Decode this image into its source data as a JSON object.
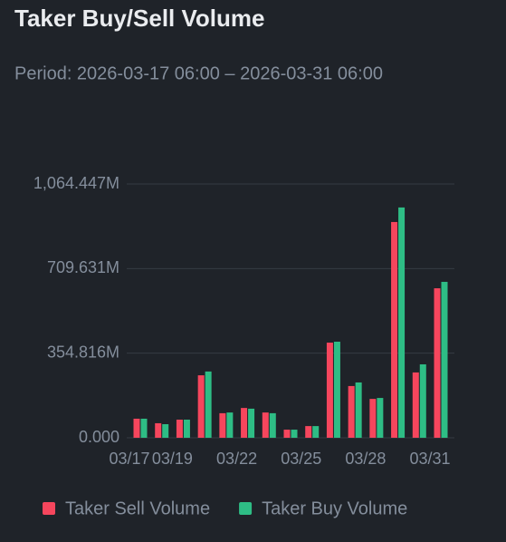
{
  "chart_data": {
    "type": "bar",
    "title": "Taker Buy/Sell Volume",
    "subtitle": "Period: 2026-03-17 06:00 – 2026-03-31 06:00",
    "categories": [
      "03/17",
      null,
      "03/19",
      null,
      null,
      "03/22",
      null,
      null,
      "03/25",
      null,
      null,
      "03/28",
      null,
      null,
      "03/31"
    ],
    "series": [
      {
        "name": "Taker Sell Volume",
        "color": "#f6465d",
        "values": [
          80,
          61,
          76,
          262,
          103,
          125,
          106,
          34,
          49,
          399,
          217,
          163,
          905,
          274,
          627
        ]
      },
      {
        "name": "Taker Buy Volume",
        "color": "#2ebd85",
        "values": [
          80,
          57,
          76,
          278,
          106,
          122,
          103,
          34,
          49,
          403,
          232,
          167,
          966,
          308,
          654
        ]
      }
    ],
    "ylim": [
      0,
      1064.447
    ],
    "yticks": [
      {
        "value": 0,
        "label": "0.000"
      },
      {
        "value": 354.816,
        "label": "354.816M"
      },
      {
        "value": 709.631,
        "label": "709.631M"
      },
      {
        "value": 1064.447,
        "label": "1,064.447M"
      }
    ],
    "grid": true
  }
}
